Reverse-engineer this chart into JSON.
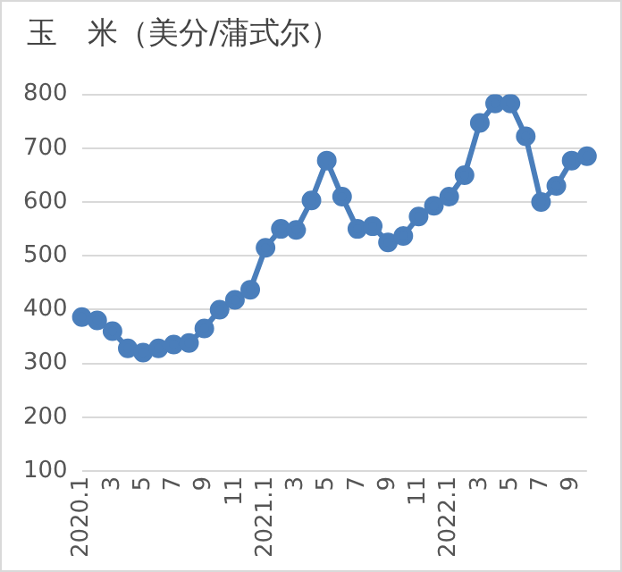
{
  "chart_data": {
    "type": "line",
    "title": "玉　米（美分/蒲式尔）",
    "categories": [
      "2020.1",
      null,
      "3",
      null,
      "5",
      null,
      "7",
      null,
      "9",
      null,
      "11",
      null,
      "2021.1",
      null,
      "3",
      null,
      "5",
      null,
      "7",
      null,
      "9",
      null,
      "11",
      null,
      "2022.1",
      null,
      "3",
      null,
      "5",
      null,
      "7",
      null,
      "9",
      null
    ],
    "series": [
      {
        "color": "#4a7ebb",
        "values": [
          386,
          380,
          360,
          328,
          320,
          328,
          335,
          338,
          365,
          400,
          418,
          437,
          515,
          550,
          548,
          603,
          677,
          610,
          550,
          555,
          525,
          537,
          573,
          593,
          610,
          650,
          747,
          783,
          783,
          722,
          600,
          630,
          677,
          685
        ]
      }
    ],
    "ylim": [
      100,
      800
    ],
    "yticks": [
      100,
      200,
      300,
      400,
      500,
      600,
      700,
      800
    ],
    "grid": "y",
    "legend": false,
    "marker": "circle",
    "line_style": "solid"
  }
}
